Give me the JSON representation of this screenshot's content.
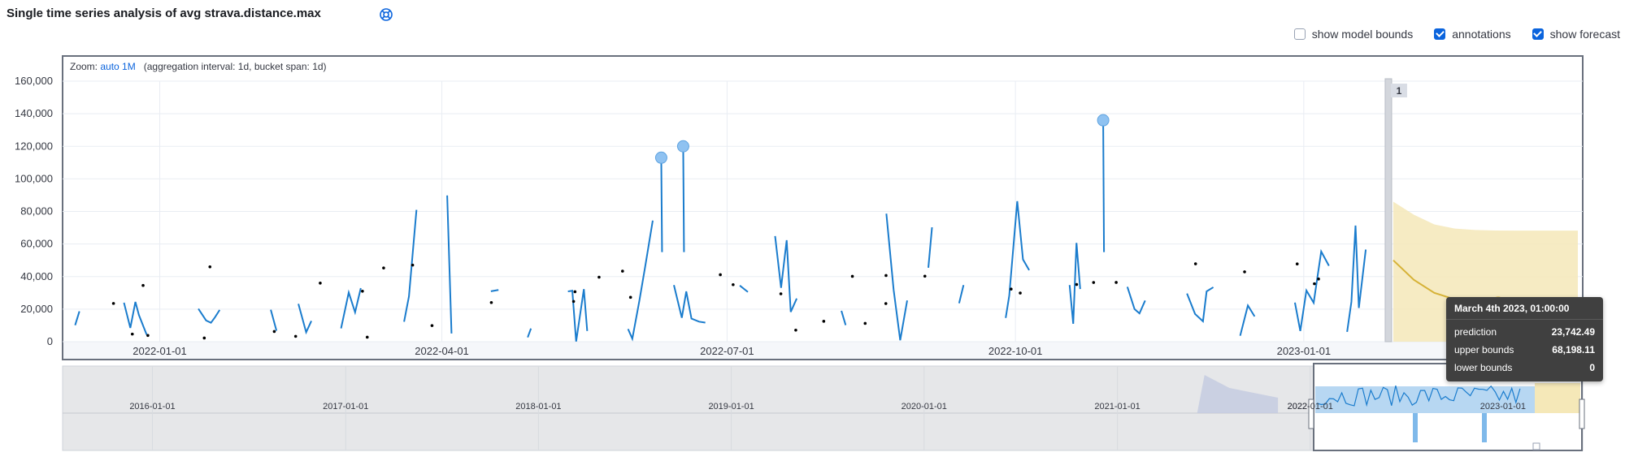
{
  "header": {
    "title": "Single time series analysis of avg strava.distance.max"
  },
  "toggles": [
    {
      "label": "show model bounds",
      "checked": false
    },
    {
      "label": "annotations",
      "checked": true
    },
    {
      "label": "show forecast",
      "checked": true
    }
  ],
  "zoom": {
    "prefix": "Zoom:",
    "link": "auto 1M",
    "info": "(aggregation interval: 1d, bucket span: 1d)"
  },
  "annotation": {
    "label": "1"
  },
  "chart_data": {
    "type": "line",
    "y_ticks": [
      "0",
      "20,000",
      "40,000",
      "60,000",
      "80,000",
      "100,000",
      "120,000",
      "140,000",
      "160,000"
    ],
    "ylim": [
      0,
      160000
    ],
    "x_ticks": [
      "2022-01-01",
      "2022-04-01",
      "2022-07-01",
      "2022-10-01",
      "2023-01-01"
    ],
    "context_ticks": [
      "2016-01-01",
      "2017-01-01",
      "2018-01-01",
      "2019-01-01",
      "2020-01-01",
      "2021-01-01",
      "2022-01-01",
      "2023-01-01"
    ],
    "series_color": "#1a7ccd",
    "forecast_color": "#d6b237",
    "forecast_band_color": "#f5e8b8",
    "anomalies": [
      {
        "date": "2022-06-10",
        "value": 113000
      },
      {
        "date": "2022-06-17",
        "value": 120000
      },
      {
        "date": "2022-10-29",
        "value": 136000
      }
    ],
    "forecast": {
      "prediction": [
        50000,
        38000,
        30000,
        26000,
        24500,
        23900,
        23742,
        23742,
        23742,
        23742
      ],
      "upper": [
        86000,
        78000,
        72000,
        69500,
        68600,
        68300,
        68200,
        68198,
        68198,
        68198
      ],
      "lower": [
        0,
        0,
        0,
        0,
        0,
        0,
        0,
        0,
        0,
        0
      ]
    }
  },
  "tooltip": {
    "title": "March 4th 2023, 01:00:00",
    "rows": [
      {
        "label": "prediction",
        "value": "23,742.49"
      },
      {
        "label": "upper bounds",
        "value": "68,198.11"
      },
      {
        "label": "lower bounds",
        "value": "0"
      }
    ]
  }
}
